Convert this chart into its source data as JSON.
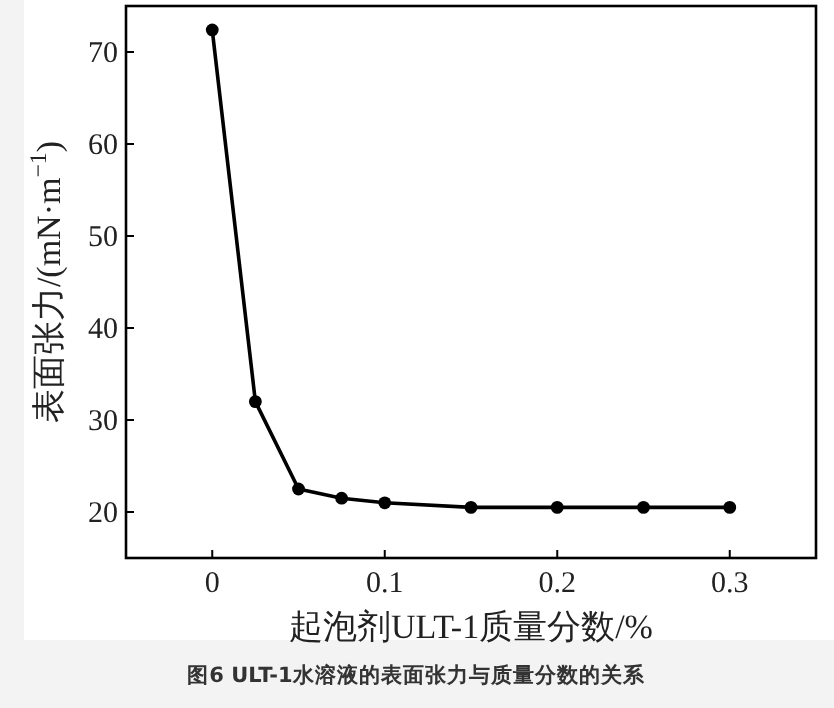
{
  "chart_data": {
    "type": "line",
    "title": "图6 ULT-1水溶液的表面张力与质量分数的关系",
    "xlabel": "起泡剂ULT-1质量分数/%",
    "ylabel": "表面张力/(mN·m$^{−1}$)",
    "x": [
      0,
      0.025,
      0.05,
      0.075,
      0.1,
      0.15,
      0.2,
      0.25,
      0.3
    ],
    "series": [
      {
        "color": "#000000",
        "values": [
          72.4,
          32,
          22.5,
          21.5,
          21,
          20.5,
          20.5,
          20.5,
          20.5
        ]
      }
    ],
    "xlim": [
      -0.05,
      0.35
    ],
    "ylim": [
      15,
      75
    ],
    "xticks": [
      0,
      0.1,
      0.2,
      0.3
    ],
    "yticks": [
      20,
      30,
      40,
      50,
      60,
      70
    ],
    "marker": "circle",
    "line_style": "solid"
  }
}
